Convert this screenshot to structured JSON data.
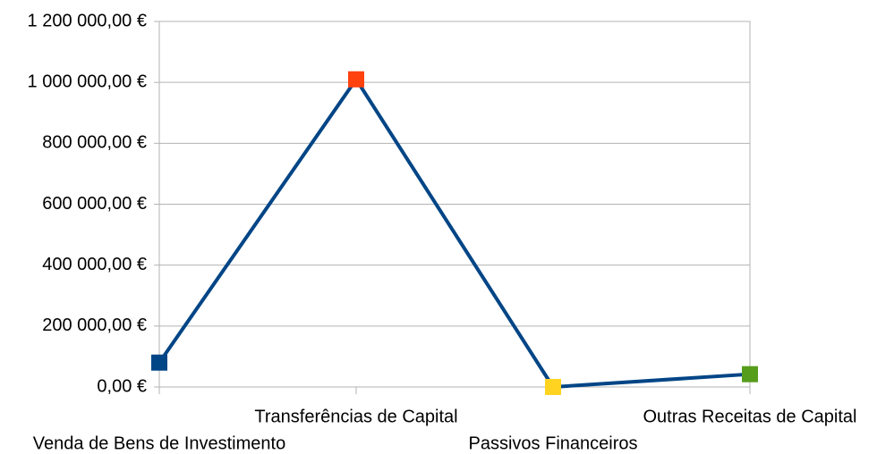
{
  "chart_data": {
    "type": "line",
    "categories": [
      "Venda de Bens de Investimento",
      "Transferências de Capital",
      "Passivos Financeiros",
      "Outras Receitas de Capital"
    ],
    "values": [
      80000,
      1010000,
      0,
      42000
    ],
    "color": "#004586",
    "marker_colors": [
      "#004586",
      "#ff420e",
      "#ffd320",
      "#579d1c"
    ],
    "ylim": [
      0,
      1200000
    ],
    "yticks": [
      {
        "value": 0,
        "label": "0,00 €"
      },
      {
        "value": 200000,
        "label": "200 000,00 €"
      },
      {
        "value": 400000,
        "label": "400 000,00 €"
      },
      {
        "value": 600000,
        "label": "600 000,00 €"
      },
      {
        "value": 800000,
        "label": "800 000,00 €"
      },
      {
        "value": 1000000,
        "label": "1 000 000,00 €"
      },
      {
        "value": 1200000,
        "label": "1 200 000,00 €"
      }
    ],
    "grid": true
  }
}
